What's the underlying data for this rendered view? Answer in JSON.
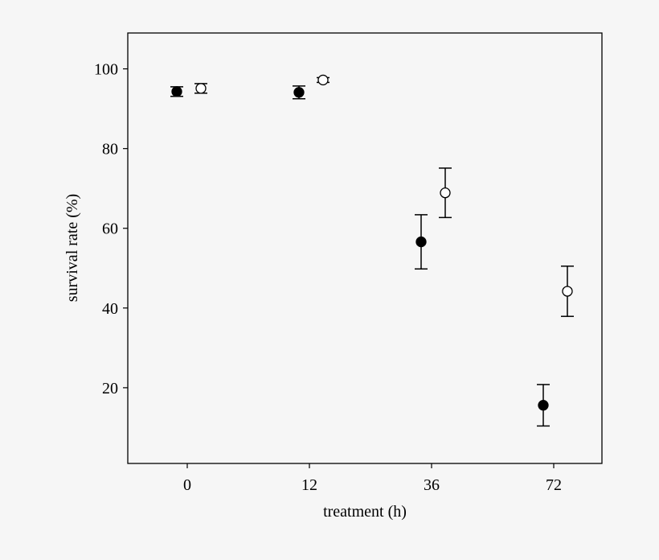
{
  "chart_data": {
    "type": "scatter",
    "xlabel": "treatment (h)",
    "ylabel": "survival rate (%)",
    "categories": [
      "0",
      "12",
      "36",
      "72"
    ],
    "ylim": [
      1,
      109
    ],
    "yticks": [
      20,
      40,
      60,
      80,
      100
    ],
    "grid": false,
    "series": [
      {
        "marker": "filled-circle",
        "color": "#000000",
        "values": [
          94.3,
          94.1,
          56.6,
          15.6
        ],
        "errors": [
          1.2,
          1.6,
          6.8,
          5.2
        ]
      },
      {
        "marker": "open-circle",
        "color": "#ffffff",
        "values": [
          95.1,
          97.2,
          68.9,
          44.2
        ],
        "errors": [
          1.2,
          0.6,
          6.2,
          6.3
        ]
      }
    ]
  }
}
